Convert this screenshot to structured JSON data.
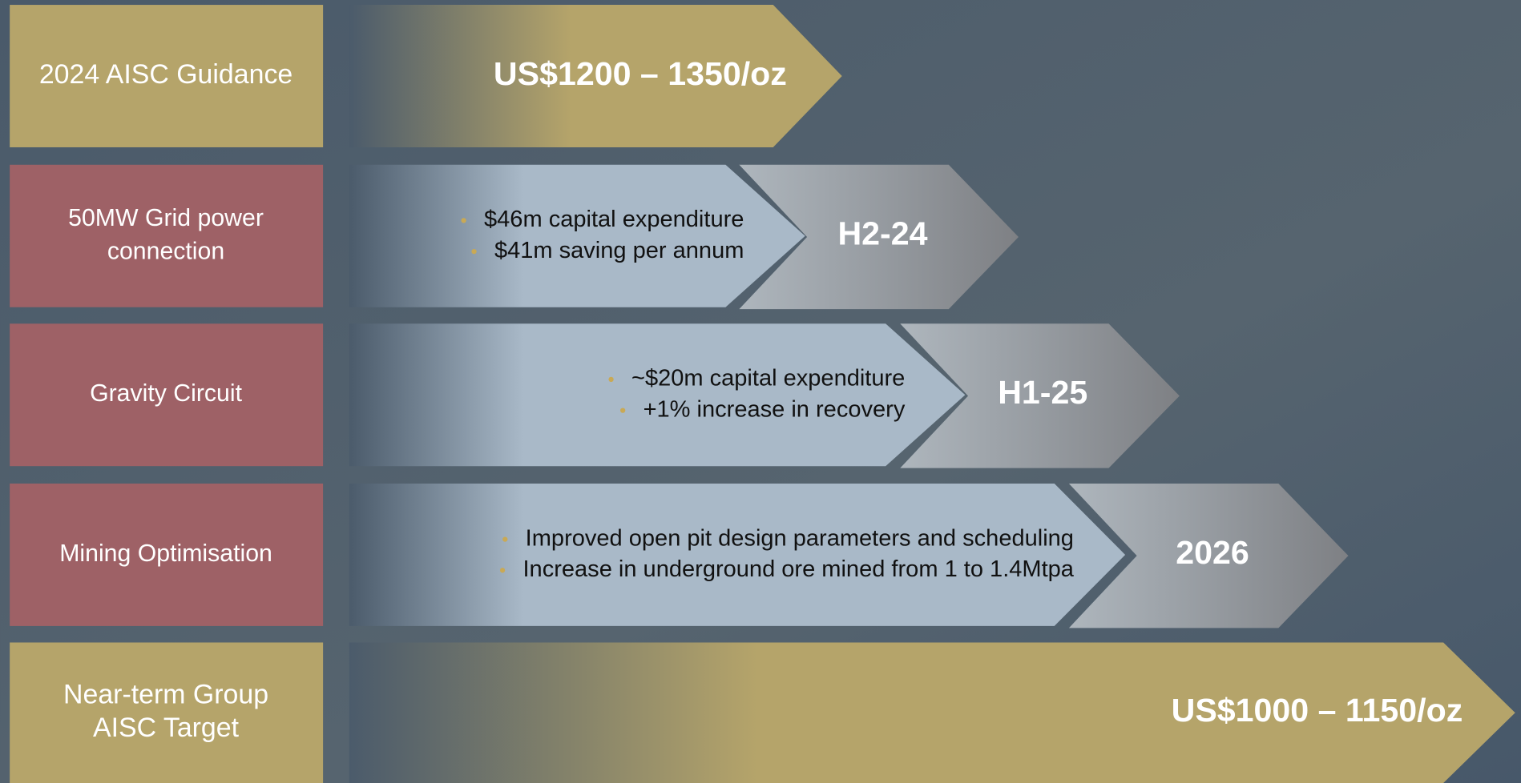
{
  "rows": [
    {
      "label": [
        "2024 AISC Guidance"
      ],
      "value": "US$1200 – 1350/oz"
    },
    {
      "label": [
        "50MW Grid power",
        "connection"
      ],
      "bullets": [
        "$46m capital expenditure",
        "$41m saving per annum"
      ],
      "timing": "H2-24"
    },
    {
      "label": [
        "Gravity Circuit"
      ],
      "bullets": [
        "~$20m capital expenditure",
        "+1% increase in recovery"
      ],
      "timing": "H1-25"
    },
    {
      "label": [
        "Mining Optimisation"
      ],
      "bullets": [
        "Improved open pit design parameters and scheduling",
        "Increase in underground ore mined from 1 to 1.4Mtpa"
      ],
      "timing": "2026"
    },
    {
      "label": [
        "Near-term Group",
        "AISC Target"
      ],
      "value": "US$1000 – 1150/oz"
    }
  ]
}
